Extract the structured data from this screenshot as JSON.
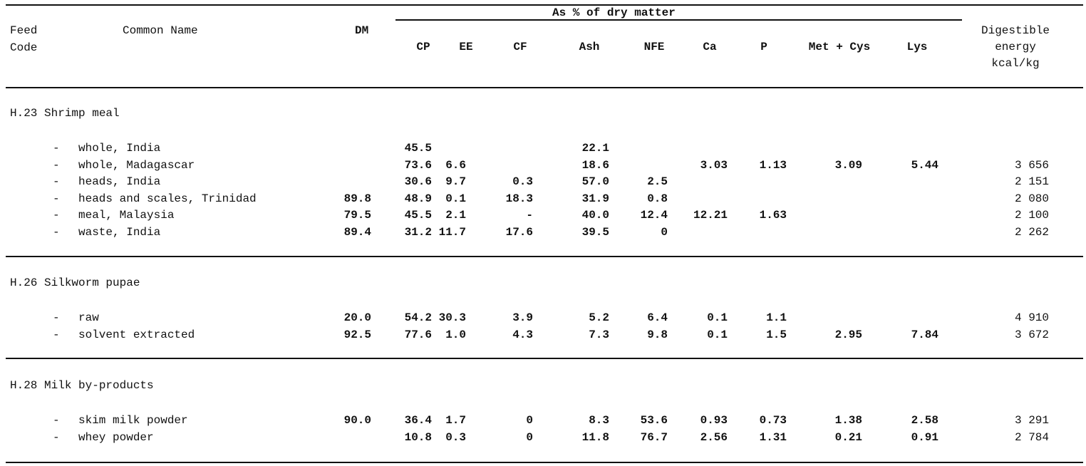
{
  "header": {
    "feed_code": [
      "Feed",
      "Code"
    ],
    "common_name": "Common Name",
    "dm": "DM",
    "group_label": "As % of dry matter",
    "columns": [
      "CP",
      "EE",
      "CF",
      "Ash",
      "NFE",
      "Ca",
      "P",
      "Met + Cys",
      "Lys"
    ],
    "energy": [
      "Digestible",
      "energy",
      "kcal/kg"
    ]
  },
  "sections": [
    {
      "title": "H.23 Shrimp meal",
      "rows": [
        {
          "name": "whole, India",
          "dm": "",
          "values": [
            "45.5",
            "",
            "",
            "22.1",
            "",
            "",
            "",
            "",
            ""
          ],
          "de": ""
        },
        {
          "name": "whole, Madagascar",
          "dm": "",
          "values": [
            "73.6",
            "6.6",
            "",
            "18.6",
            "",
            "3.03",
            "1.13",
            "3.09",
            "5.44"
          ],
          "de": "3 656"
        },
        {
          "name": "heads, India",
          "dm": "",
          "values": [
            "30.6",
            "9.7",
            "0.3",
            "57.0",
            "2.5",
            "",
            "",
            "",
            ""
          ],
          "de": "2 151"
        },
        {
          "name": "heads and scales, Trinidad",
          "dm": "89.8",
          "values": [
            "48.9",
            "0.1",
            "18.3",
            "31.9",
            "0.8",
            "",
            "",
            "",
            ""
          ],
          "de": "2 080"
        },
        {
          "name": "meal, Malaysia",
          "dm": "79.5",
          "values": [
            "45.5",
            "2.1",
            "-",
            "40.0",
            "12.4",
            "12.21",
            "1.63",
            "",
            ""
          ],
          "de": "2 100"
        },
        {
          "name": "waste, India",
          "dm": "89.4",
          "values": [
            "31.2",
            "11.7",
            "17.6",
            "39.5",
            "0",
            "",
            "",
            "",
            ""
          ],
          "de": "2 262"
        }
      ]
    },
    {
      "title": "H.26 Silkworm pupae",
      "rows": [
        {
          "name": "raw",
          "dm": "20.0",
          "values": [
            "54.2",
            "30.3",
            "3.9",
            "5.2",
            "6.4",
            "0.1",
            "1.1",
            "",
            ""
          ],
          "de": "4 910"
        },
        {
          "name": "solvent extracted",
          "dm": "92.5",
          "values": [
            "77.6",
            "1.0",
            "4.3",
            "7.3",
            "9.8",
            "0.1",
            "1.5",
            "2.95",
            "7.84"
          ],
          "de": "3 672"
        }
      ]
    },
    {
      "title": "H.28 Milk by-products",
      "rows": [
        {
          "name": "skim milk powder",
          "dm": "90.0",
          "values": [
            "36.4",
            "1.7",
            "0",
            "8.3",
            "53.6",
            "0.93",
            "0.73",
            "1.38",
            "2.58"
          ],
          "de": "3 291"
        },
        {
          "name": "whey powder",
          "dm": "",
          "values": [
            "10.8",
            "0.3",
            "0",
            "11.8",
            "76.7",
            "2.56",
            "1.31",
            "0.21",
            "0.91"
          ],
          "de": "2 784"
        }
      ]
    }
  ]
}
